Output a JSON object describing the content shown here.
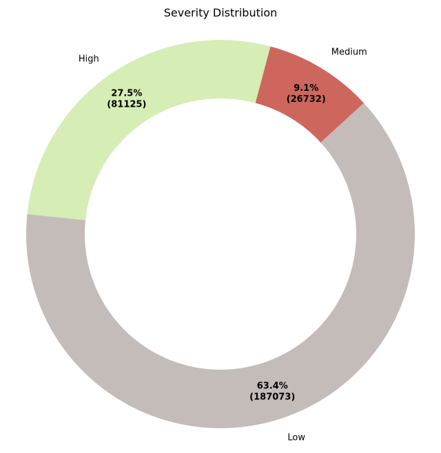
{
  "chart_data": {
    "type": "pie",
    "title": "Severity Distribution",
    "donut": true,
    "slices": [
      {
        "label": "High",
        "value": 81125,
        "percent_label": "27.5%",
        "count_label": "(81125)",
        "color": "#d6edb6"
      },
      {
        "label": "Low",
        "value": 187073,
        "percent_label": "63.4%",
        "count_label": "(187073)",
        "color": "#c3bcb9"
      },
      {
        "label": "Medium",
        "value": 26732,
        "percent_label": "9.1%",
        "count_label": "(26732)",
        "color": "#cd675d"
      }
    ]
  }
}
